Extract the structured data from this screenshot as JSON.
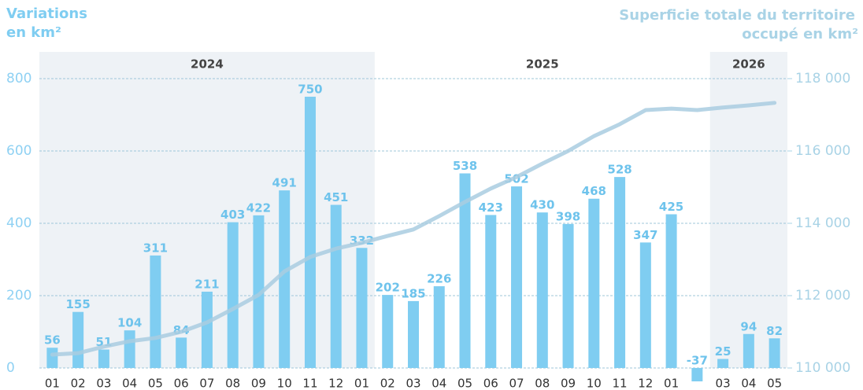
{
  "chart_data": {
    "type": "bar",
    "title_left": [
      "Variations",
      "en km²"
    ],
    "title_right": [
      "Superficie totale du territoire",
      "occupé en km²"
    ],
    "year_bands": [
      {
        "label": "2024",
        "categories": 13,
        "shaded": true
      },
      {
        "label": "2025",
        "categories": 13,
        "shaded": false
      },
      {
        "label": "2026",
        "categories": 3,
        "shaded": true
      }
    ],
    "categories": [
      "01",
      "02",
      "03",
      "04",
      "05",
      "06",
      "07",
      "08",
      "09",
      "10",
      "11",
      "12",
      "01",
      "02",
      "03",
      "04",
      "05",
      "06",
      "07",
      "08",
      "09",
      "10",
      "11",
      "12",
      "01",
      null,
      "03",
      "04",
      "05"
    ],
    "series": [
      {
        "name": "Variations",
        "color": "#7fcdf1",
        "type": "bar",
        "values": [
          56,
          155,
          51,
          104,
          311,
          84,
          211,
          403,
          422,
          491,
          750,
          451,
          332,
          202,
          185,
          226,
          538,
          423,
          502,
          430,
          398,
          468,
          528,
          347,
          425,
          -37,
          25,
          94,
          82
        ]
      },
      {
        "name": "Superficie totale",
        "color": "#a9cde1",
        "type": "line",
        "axis": "y2",
        "values": [
          110370,
          110410,
          110590,
          110740,
          110830,
          111000,
          111260,
          111630,
          112020,
          112670,
          113070,
          113300,
          113460,
          113650,
          113830,
          114200,
          114590,
          114960,
          115280,
          115650,
          116000,
          116410,
          116740,
          117130,
          117170,
          117130,
          117200,
          117260,
          117330
        ]
      }
    ],
    "ylim": [
      0,
      800
    ],
    "yticks": [
      0,
      200,
      400,
      600,
      800
    ],
    "y2lim": [
      110000,
      118000
    ],
    "y2ticks": [
      {
        "value": 110000,
        "label": "110 000"
      },
      {
        "value": 112000,
        "label": "112 000"
      },
      {
        "value": 114000,
        "label": "114 000"
      },
      {
        "value": 116000,
        "label": "116 000"
      },
      {
        "value": 118000,
        "label": "118 000"
      }
    ],
    "grid": true
  }
}
